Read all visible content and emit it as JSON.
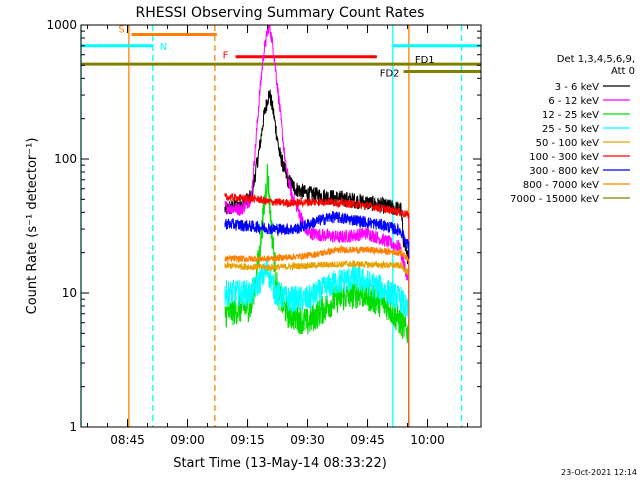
{
  "chart_data": {
    "type": "line",
    "title": "RHESSI Observing Summary Count Rates",
    "xlabel": "Start Time (13-May-14 08:33:22)",
    "ylabel": "Count Rate (s⁻¹ detector⁻¹)",
    "yscale": "log",
    "ylim": [
      1,
      1000
    ],
    "xlim": [
      "08:33:22",
      "10:13:22"
    ],
    "x_ticks": [
      "08:45",
      "09:00",
      "09:15",
      "09:30",
      "09:45",
      "10:00"
    ],
    "y_ticks": [
      "1",
      "10",
      "100",
      "1000"
    ],
    "timestamp": "23-Oct-2021 12:14",
    "legend": {
      "position": "right",
      "header": [
        "Det 1,3,4,5,6,9,",
        "Att 0"
      ],
      "entries": [
        {
          "label": "3 - 6 keV",
          "color": "#000000"
        },
        {
          "label": "6 - 12 keV",
          "color": "#ff00ff"
        },
        {
          "label": "12 - 25 keV",
          "color": "#00dd00"
        },
        {
          "label": "25 - 50 keV",
          "color": "#00ffff"
        },
        {
          "label": "50 - 100 keV",
          "color": "#e8a000"
        },
        {
          "label": "100 - 300 keV",
          "color": "#ff0000"
        },
        {
          "label": "300 - 800 keV",
          "color": "#0000ff"
        },
        {
          "label": "800 - 7000 keV",
          "color": "#ff8000"
        },
        {
          "label": "7000 - 15000 keV",
          "color": "#808000"
        }
      ]
    },
    "flag_bars": [
      {
        "label": "S",
        "color": "#ff8000",
        "start": "08:46:00",
        "end": "09:07:20",
        "level": 850
      },
      {
        "label": "N",
        "color": "#00ffff",
        "start": "08:33:22",
        "end": "08:51:30",
        "level": 700
      },
      {
        "label": "",
        "color": "#00ffff",
        "start": "09:51:20",
        "end": "10:13:22",
        "level": 700
      },
      {
        "label": "F",
        "color": "#ff0000",
        "start": "09:12:00",
        "end": "09:47:20",
        "level": 580
      },
      {
        "label": "FD1",
        "color": "#808000",
        "start": "08:33:22",
        "end": "10:13:22",
        "level": 510
      },
      {
        "label": "FD2",
        "color": "#808000",
        "start": "09:54:00",
        "end": "10:13:22",
        "level": 450
      }
    ],
    "vertical_markers": [
      {
        "time": "08:33:22",
        "color": "#00ffff",
        "style": "solid"
      },
      {
        "time": "08:45:20",
        "color": "#ff8000",
        "style": "solid"
      },
      {
        "time": "08:51:20",
        "color": "#00ffff",
        "style": "dashed"
      },
      {
        "time": "09:06:50",
        "color": "#ff8000",
        "style": "dashed"
      },
      {
        "time": "09:51:20",
        "color": "#00ffff",
        "style": "solid"
      },
      {
        "time": "09:55:20",
        "color": "#ff8000",
        "style": "solid"
      },
      {
        "time": "10:08:30",
        "color": "#00ffff",
        "style": "dashed"
      }
    ],
    "data_window": [
      "09:09:20",
      "09:55:20"
    ],
    "series": [
      {
        "name": "3 - 6 keV",
        "color": "#000000",
        "x": [
          "09:09:20",
          "09:13:30",
          "09:16:00",
          "09:18:00",
          "09:19:00",
          "09:20:00",
          "09:20:30",
          "09:21:30",
          "09:23:00",
          "09:25:00",
          "09:27:00",
          "09:30:00",
          "09:40:00",
          "09:47:00",
          "09:53:20",
          "09:54:00",
          "09:55:20"
        ],
        "y": [
          42,
          46,
          52,
          120,
          200,
          280,
          310,
          220,
          110,
          70,
          60,
          55,
          50,
          46,
          42,
          25,
          17
        ]
      },
      {
        "name": "6 - 12 keV",
        "color": "#ff00ff",
        "x": [
          "09:09:20",
          "09:13:30",
          "09:16:00",
          "09:18:00",
          "09:19:00",
          "09:20:00",
          "09:20:30",
          "09:21:30",
          "09:23:00",
          "09:24:30",
          "09:26:00",
          "09:30:00",
          "09:38:00",
          "09:45:00",
          "09:53:00",
          "09:55:20"
        ],
        "y": [
          44,
          42,
          52,
          300,
          600,
          900,
          1000,
          650,
          250,
          90,
          55,
          28,
          26,
          28,
          22,
          12
        ]
      },
      {
        "name": "12 - 25 keV",
        "color": "#00dd00",
        "x": [
          "09:09:20",
          "09:16:00",
          "09:18:00",
          "09:19:00",
          "09:20:00",
          "09:21:00",
          "09:22:30",
          "09:25:00",
          "09:30:00",
          "09:37:00",
          "09:43:00",
          "09:50:00",
          "09:53:20",
          "09:55:20"
        ],
        "y": [
          7,
          8,
          20,
          40,
          80,
          30,
          10,
          7,
          6,
          9,
          10,
          8,
          6,
          5
        ]
      },
      {
        "name": "25 - 50 keV",
        "color": "#00ffff",
        "x": [
          "09:09:20",
          "09:16:00",
          "09:20:00",
          "09:22:00",
          "09:25:00",
          "09:30:00",
          "09:37:00",
          "09:42:00",
          "09:48:00",
          "09:53:20",
          "09:55:20"
        ],
        "y": [
          10,
          10,
          15,
          10,
          9,
          9,
          12,
          13,
          11,
          9,
          7
        ]
      },
      {
        "name": "50 - 100 keV",
        "color": "#e8a000",
        "x": [
          "09:09:20",
          "09:20:00",
          "09:30:00",
          "09:40:00",
          "09:53:20",
          "09:55:20"
        ],
        "y": [
          16,
          15.5,
          16,
          16.5,
          16,
          14
        ]
      },
      {
        "name": "100 - 300 keV",
        "color": "#ff0000",
        "x": [
          "09:09:20",
          "09:18:00",
          "09:20:00",
          "09:25:00",
          "09:35:00",
          "09:45:00",
          "09:53:20",
          "09:55:20"
        ],
        "y": [
          52,
          50,
          48,
          47,
          48,
          45,
          40,
          38
        ]
      },
      {
        "name": "300 - 800 keV",
        "color": "#0000ff",
        "x": [
          "09:09:20",
          "09:18:00",
          "09:22:00",
          "09:27:00",
          "09:32:00",
          "09:36:00",
          "09:42:00",
          "09:49:00",
          "09:53:20",
          "09:55:20"
        ],
        "y": [
          33,
          31,
          30,
          30,
          34,
          37,
          35,
          32,
          29,
          22
        ]
      },
      {
        "name": "800 - 7000 keV",
        "color": "#ff8000",
        "x": [
          "09:09:20",
          "09:20:00",
          "09:30:00",
          "09:38:00",
          "09:45:00",
          "09:53:20",
          "09:55:20"
        ],
        "y": [
          18,
          18,
          19,
          21,
          21,
          20,
          18
        ]
      },
      {
        "name": "7000 - 15000 keV",
        "color": "#808000",
        "x": [],
        "y": []
      }
    ]
  }
}
